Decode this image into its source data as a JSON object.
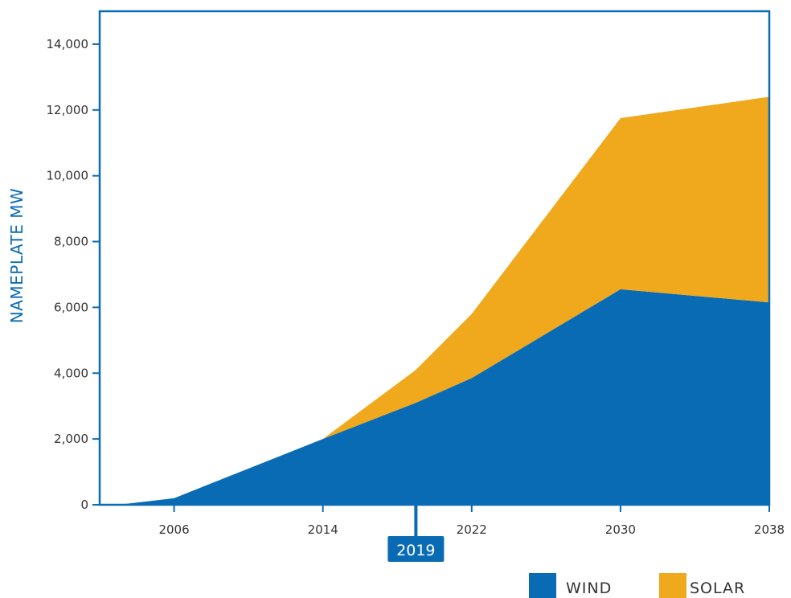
{
  "chart_data": {
    "type": "area",
    "stacked": true,
    "title": "",
    "xlabel": "",
    "ylabel": "NAMEPLATE MW",
    "x": [
      2003,
      2006,
      2014,
      2019,
      2022,
      2030,
      2038
    ],
    "series": [
      {
        "name": "WIND",
        "color": "#0a6bb5",
        "values": [
          0,
          200,
          2000,
          3100,
          3850,
          6550,
          6150
        ]
      },
      {
        "name": "SOLAR",
        "color": "#f0a81c",
        "values": [
          0,
          0,
          0,
          1000,
          1950,
          5200,
          6250
        ]
      }
    ],
    "xticks": [
      "2006",
      "2014",
      "2022",
      "2030",
      "2038"
    ],
    "yticks": [
      "0",
      "2,000",
      "4,000",
      "6,000",
      "8,000",
      "10,000",
      "12,000",
      "14,000"
    ],
    "xlim": [
      2002,
      2038
    ],
    "ylim": [
      0,
      15000
    ],
    "marker": {
      "label": "2019",
      "x": 2019
    },
    "legend": {
      "placement": "bottom-right"
    },
    "grid": false,
    "frame_color": "#0a6bb5"
  }
}
